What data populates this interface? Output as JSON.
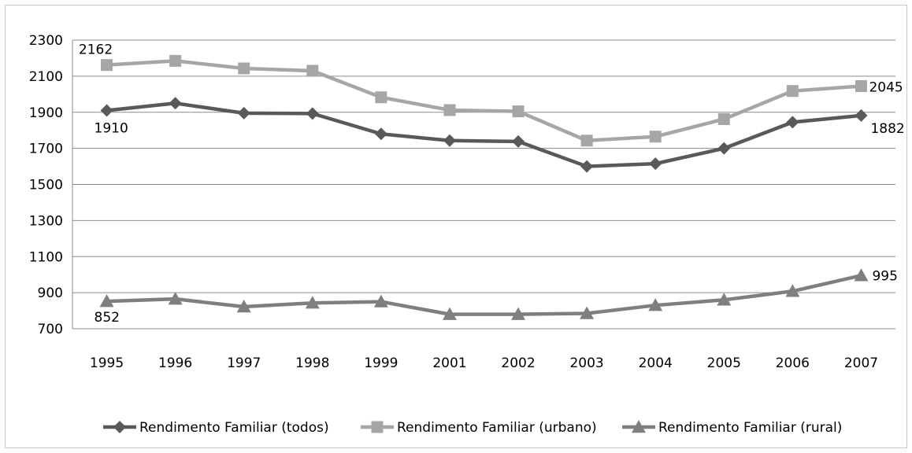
{
  "chart_data": {
    "type": "line",
    "title": "",
    "xlabel": "",
    "ylabel": "",
    "categories": [
      "1995",
      "1996",
      "1997",
      "1998",
      "1999",
      "2001",
      "2002",
      "2003",
      "2004",
      "2005",
      "2006",
      "2007"
    ],
    "ylim": [
      700,
      2300
    ],
    "yticks": [
      700,
      900,
      1100,
      1300,
      1500,
      1700,
      1900,
      2100,
      2300
    ],
    "grid": true,
    "legend_position": "bottom",
    "series": [
      {
        "name": "Rendimento Familiar (todos)",
        "color": "#595959",
        "marker": "diamond",
        "values": [
          1910,
          1950,
          1895,
          1893,
          1780,
          1743,
          1738,
          1600,
          1615,
          1700,
          1845,
          1882
        ]
      },
      {
        "name": "Rendimento Familiar (urbano)",
        "color": "#a6a6a6",
        "marker": "square",
        "values": [
          2162,
          2185,
          2143,
          2130,
          1983,
          1912,
          1905,
          1743,
          1765,
          1862,
          2018,
          2045
        ]
      },
      {
        "name": "Rendimento Familiar (rural)",
        "color": "#7f7f7f",
        "marker": "triangle",
        "values": [
          852,
          865,
          822,
          843,
          850,
          780,
          780,
          785,
          830,
          860,
          908,
          995
        ]
      }
    ],
    "data_labels": [
      {
        "series": 1,
        "index": 0,
        "text": "2162"
      },
      {
        "series": 0,
        "index": 0,
        "text": "1910"
      },
      {
        "series": 2,
        "index": 0,
        "text": "852"
      },
      {
        "series": 1,
        "index": 11,
        "text": "2045"
      },
      {
        "series": 0,
        "index": 11,
        "text": "1882"
      },
      {
        "series": 2,
        "index": 11,
        "text": "995"
      }
    ]
  }
}
